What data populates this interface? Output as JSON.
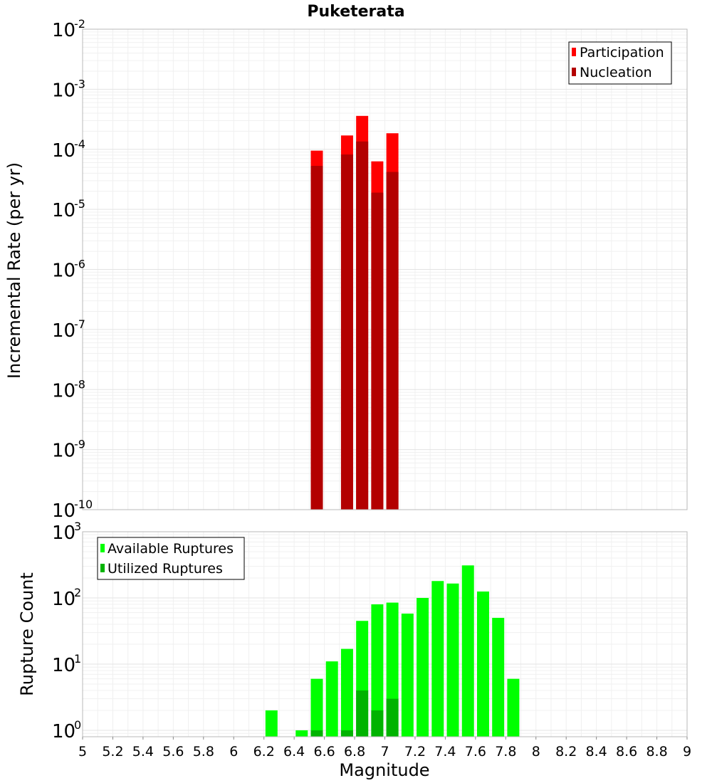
{
  "chart_data": [
    {
      "panel": "top",
      "type": "bar",
      "title": "Puketerata",
      "ylabel": "Incremental Rate (per yr)",
      "xlabel": "",
      "yscale": "log",
      "xlim": [
        5,
        9
      ],
      "ylim": [
        1e-10,
        0.01
      ],
      "y_ticks": [
        {
          "base": "10",
          "exp": "-10"
        },
        {
          "base": "10",
          "exp": "-9"
        },
        {
          "base": "10",
          "exp": "-8"
        },
        {
          "base": "10",
          "exp": "-7"
        },
        {
          "base": "10",
          "exp": "-6"
        },
        {
          "base": "10",
          "exp": "-5"
        },
        {
          "base": "10",
          "exp": "-4"
        },
        {
          "base": "10",
          "exp": "-3"
        },
        {
          "base": "10",
          "exp": "-2"
        }
      ],
      "legend_position": "top-right",
      "series": [
        {
          "name": "Participation",
          "color": "#ff0000",
          "points": [
            {
              "x": 6.55,
              "y": 9.5e-05
            },
            {
              "x": 6.75,
              "y": 0.00017
            },
            {
              "x": 6.85,
              "y": 0.00036
            },
            {
              "x": 6.95,
              "y": 6.3e-05
            },
            {
              "x": 7.05,
              "y": 0.000185
            }
          ]
        },
        {
          "name": "Nucleation",
          "color": "#b30000",
          "points": [
            {
              "x": 6.55,
              "y": 5.3e-05
            },
            {
              "x": 6.75,
              "y": 8.2e-05
            },
            {
              "x": 6.85,
              "y": 0.000135
            },
            {
              "x": 6.95,
              "y": 1.9e-05
            },
            {
              "x": 7.05,
              "y": 4.2e-05
            }
          ]
        }
      ]
    },
    {
      "panel": "bottom",
      "type": "bar",
      "title": "",
      "ylabel": "Rupture Count",
      "xlabel": "Magnitude",
      "yscale": "log",
      "xlim": [
        5,
        9
      ],
      "ylim": [
        0.8,
        1000
      ],
      "y_ticks": [
        {
          "base": "10",
          "exp": "0"
        },
        {
          "base": "10",
          "exp": "1"
        },
        {
          "base": "10",
          "exp": "2"
        },
        {
          "base": "10",
          "exp": "3"
        }
      ],
      "x_tick_labels": [
        "5",
        "5.2",
        "5.4",
        "5.6",
        "5.8",
        "6",
        "6.2",
        "6.4",
        "6.6",
        "6.8",
        "7",
        "7.2",
        "7.4",
        "7.6",
        "7.8",
        "8",
        "8.2",
        "8.4",
        "8.6",
        "8.8",
        "9"
      ],
      "legend_position": "top-left",
      "series": [
        {
          "name": "Available Ruptures",
          "color": "#00ff00",
          "points": [
            {
              "x": 6.25,
              "y": 2
            },
            {
              "x": 6.45,
              "y": 1
            },
            {
              "x": 6.55,
              "y": 6
            },
            {
              "x": 6.65,
              "y": 11
            },
            {
              "x": 6.75,
              "y": 17
            },
            {
              "x": 6.85,
              "y": 45
            },
            {
              "x": 6.95,
              "y": 80
            },
            {
              "x": 7.05,
              "y": 85
            },
            {
              "x": 7.15,
              "y": 58
            },
            {
              "x": 7.25,
              "y": 100
            },
            {
              "x": 7.35,
              "y": 180
            },
            {
              "x": 7.45,
              "y": 165
            },
            {
              "x": 7.55,
              "y": 310
            },
            {
              "x": 7.65,
              "y": 125
            },
            {
              "x": 7.75,
              "y": 50
            },
            {
              "x": 7.85,
              "y": 6
            }
          ]
        },
        {
          "name": "Utilized Ruptures",
          "color": "#00b300",
          "points": [
            {
              "x": 6.55,
              "y": 1
            },
            {
              "x": 6.75,
              "y": 1
            },
            {
              "x": 6.85,
              "y": 4
            },
            {
              "x": 6.95,
              "y": 2
            },
            {
              "x": 7.05,
              "y": 3
            }
          ]
        }
      ]
    }
  ]
}
